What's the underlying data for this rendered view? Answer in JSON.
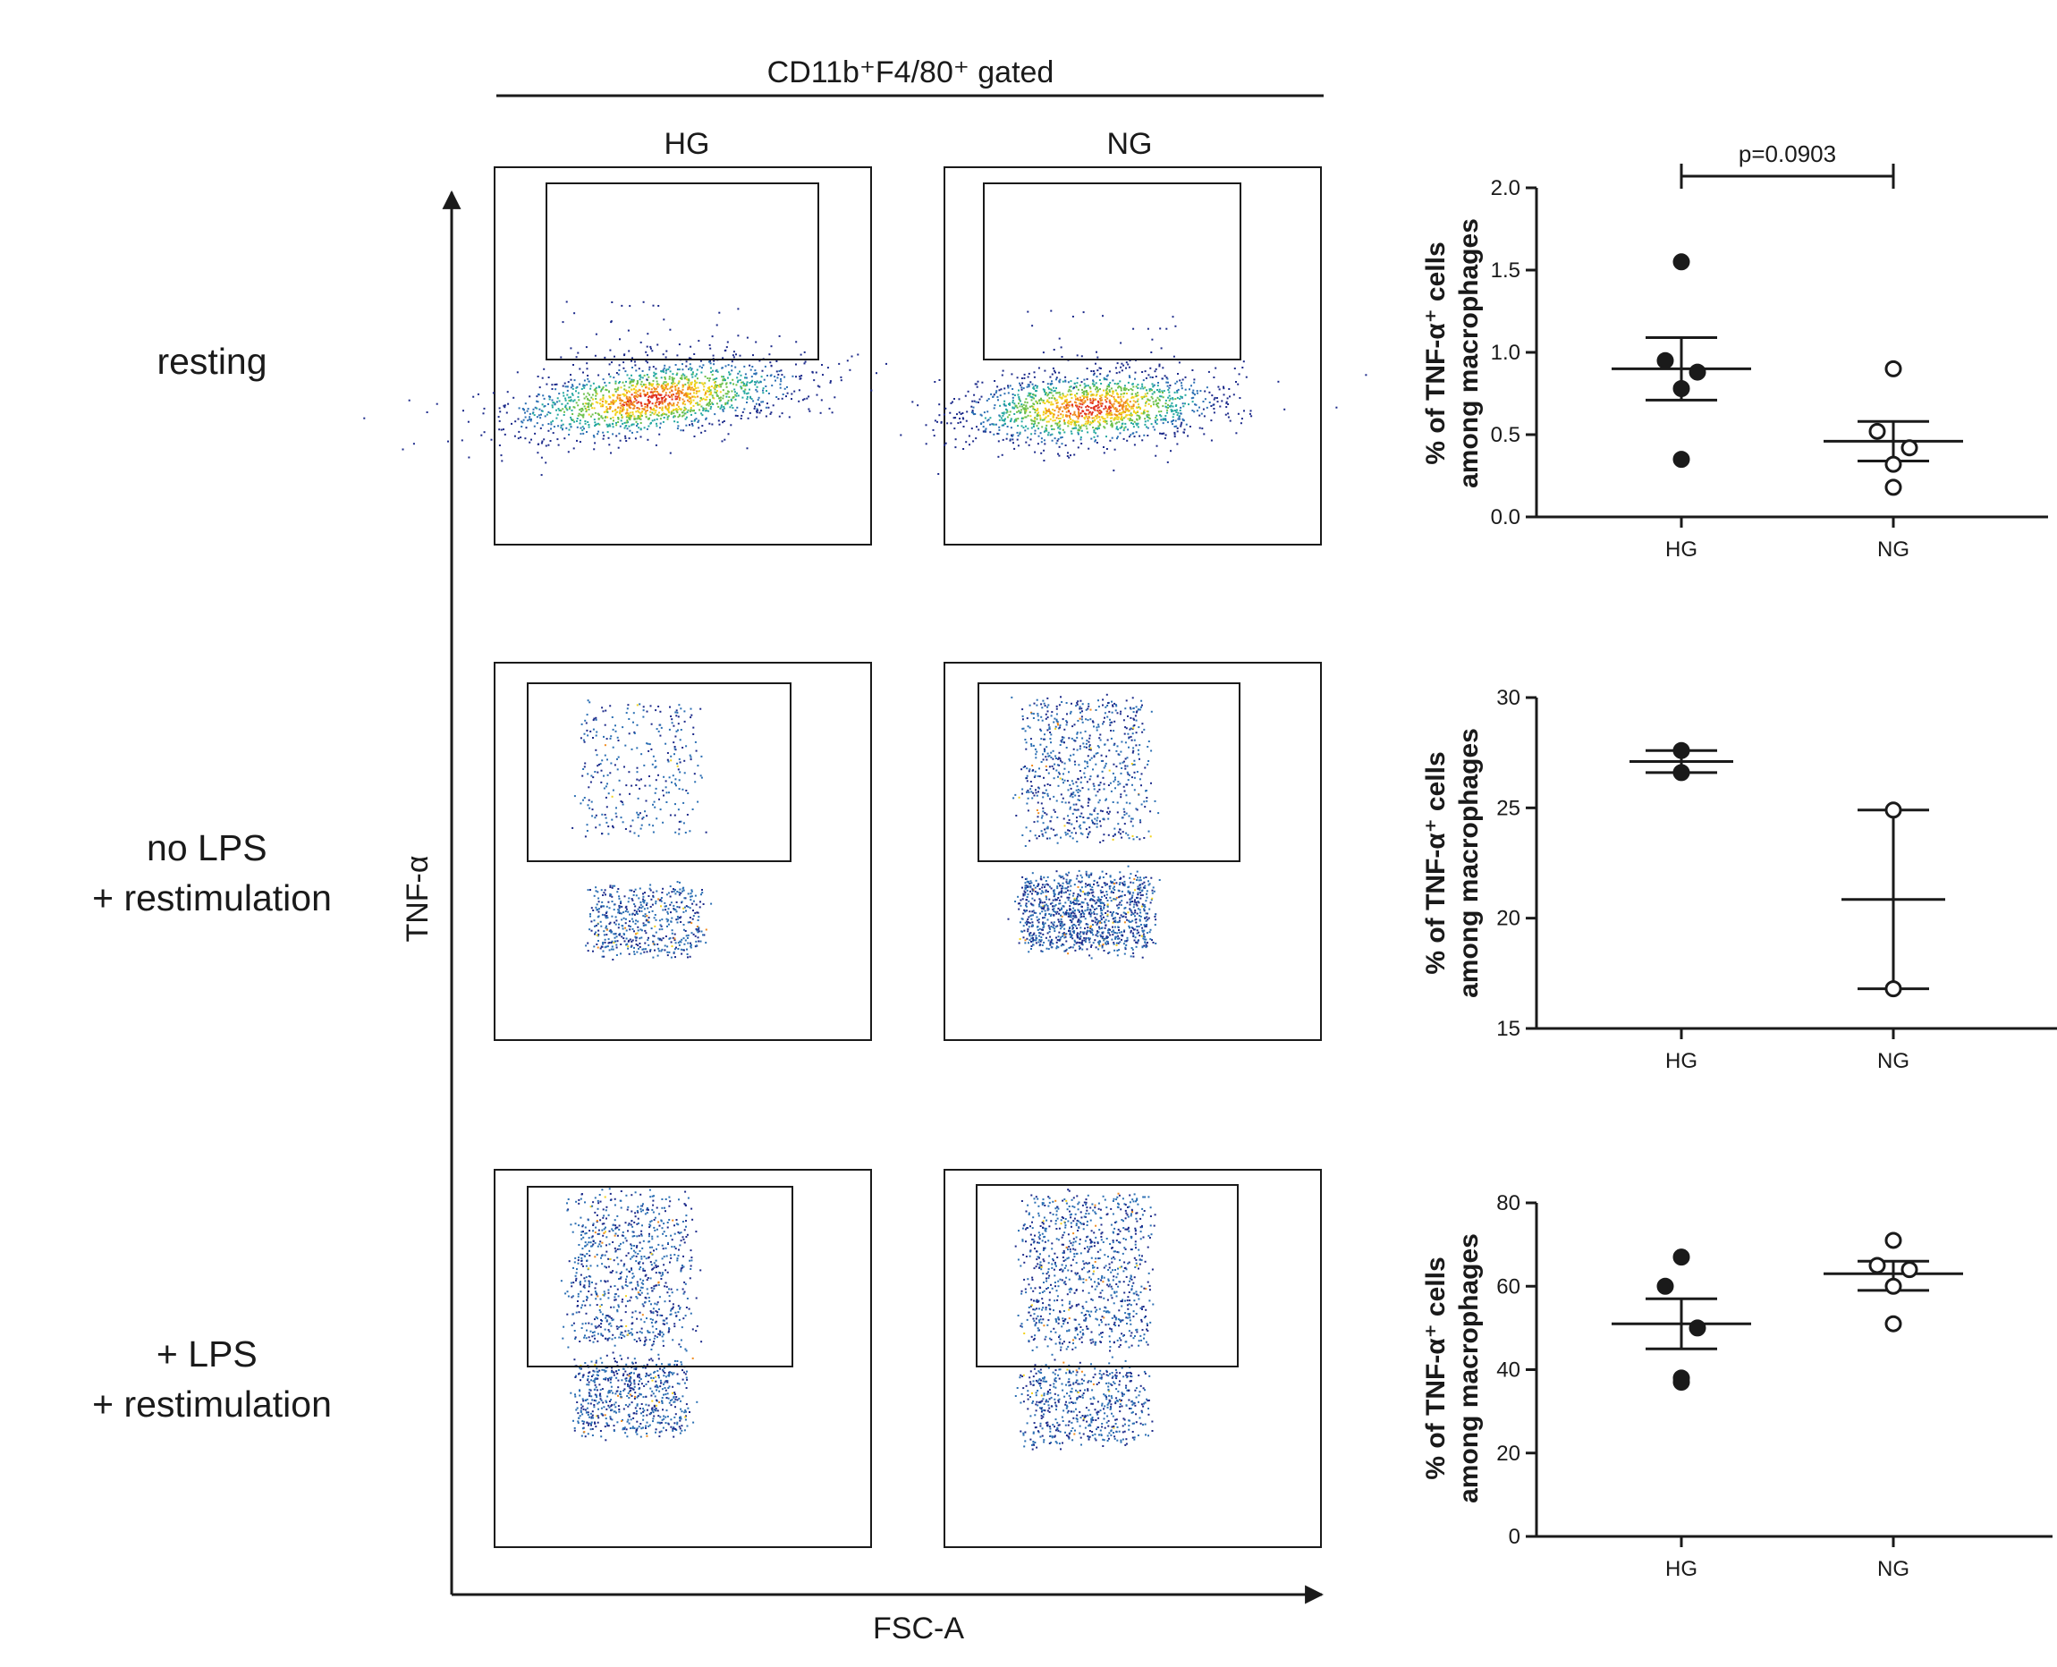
{
  "figure": {
    "header": "CD11b⁺F4/80⁺ gated",
    "columns": [
      "HG",
      "NG"
    ],
    "rows": [
      "resting",
      "no LPS\n+ restimulation",
      "+ LPS\n+ restimulation"
    ],
    "y_axis_label": "TNF-α",
    "x_axis_label": "FSC-A"
  },
  "chart_data": [
    {
      "type": "scatter",
      "title": "resting",
      "ylabel_line1": "% of TNF-α⁺ cells",
      "ylabel_line2": "among macrophages",
      "categories": [
        "HG",
        "NG"
      ],
      "ylim": [
        0,
        2.0
      ],
      "yticks": [
        "0.0",
        "0.5",
        "1.0",
        "1.5",
        "2.0"
      ],
      "ytick_values": [
        0,
        0.5,
        1.0,
        1.5,
        2.0
      ],
      "series": [
        {
          "name": "HG",
          "filled": true,
          "values": [
            1.55,
            0.95,
            0.88,
            0.78,
            0.35
          ],
          "mean": 0.9,
          "sem_upper": 1.09,
          "sem_lower": 0.71
        },
        {
          "name": "NG",
          "filled": false,
          "values": [
            0.9,
            0.52,
            0.42,
            0.32,
            0.18
          ],
          "mean": 0.46,
          "sem_upper": 0.58,
          "sem_lower": 0.34
        }
      ],
      "annotation": "p=0.0903"
    },
    {
      "type": "scatter",
      "title": "no LPS + restimulation",
      "ylabel_line1": "% of TNF-α⁺ cells",
      "ylabel_line2": "among macrophages",
      "categories": [
        "HG",
        "NG"
      ],
      "ylim": [
        15,
        30
      ],
      "yticks": [
        "15",
        "20",
        "25",
        "30"
      ],
      "ytick_values": [
        15,
        20,
        25,
        30
      ],
      "series": [
        {
          "name": "HG",
          "filled": true,
          "values": [
            27.6,
            26.6
          ],
          "mean": 27.1,
          "sem_upper": 27.6,
          "sem_lower": 26.6
        },
        {
          "name": "NG",
          "filled": false,
          "values": [
            24.9,
            16.8
          ],
          "mean": 20.85,
          "sem_upper": 24.9,
          "sem_lower": 16.8
        }
      ]
    },
    {
      "type": "scatter",
      "title": "+ LPS + restimulation",
      "ylabel_line1": "% of TNF-α⁺ cells",
      "ylabel_line2": "among macrophages",
      "categories": [
        "HG",
        "NG"
      ],
      "ylim": [
        0,
        80
      ],
      "yticks": [
        "0",
        "20",
        "40",
        "60",
        "80"
      ],
      "ytick_values": [
        0,
        20,
        40,
        60,
        80
      ],
      "series": [
        {
          "name": "HG",
          "filled": true,
          "values": [
            67,
            60,
            50,
            38,
            37
          ],
          "mean": 51,
          "sem_upper": 57,
          "sem_lower": 45
        },
        {
          "name": "NG",
          "filled": false,
          "values": [
            71,
            65,
            64,
            60,
            51
          ],
          "mean": 63,
          "sem_upper": 66,
          "sem_lower": 59
        }
      ]
    }
  ],
  "colors": {
    "ink": "#1a1a1a",
    "dot_dark": "#1c2a8a",
    "dot_mid": "#2b6fb3",
    "dot_teal": "#24a8a0",
    "dot_green": "#6cc04a",
    "dot_yellow": "#f2d21b",
    "dot_orange": "#f08a1c",
    "dot_red": "#e0301e"
  }
}
